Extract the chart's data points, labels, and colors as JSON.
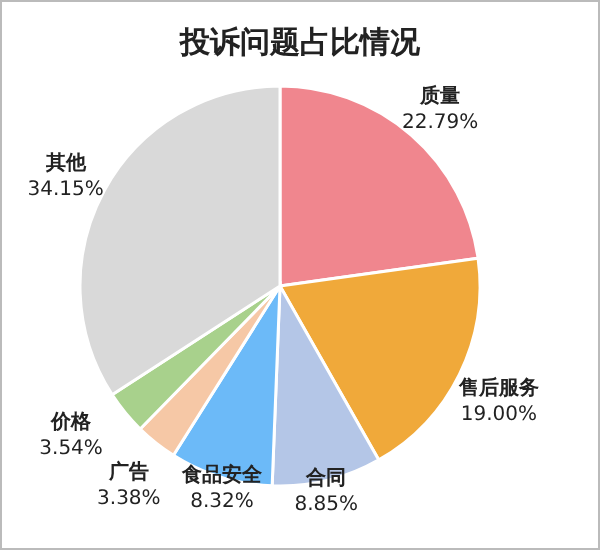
{
  "chart_data": {
    "type": "pie",
    "title": "投诉问题占比情况",
    "categories": [
      "质量",
      "售后服务",
      "合同",
      "食品安全",
      "广告",
      "价格",
      "其他"
    ],
    "values": [
      22.79,
      19.0,
      8.85,
      8.32,
      3.38,
      3.54,
      34.15
    ],
    "colors": [
      "#f0868e",
      "#f0a93a",
      "#b4c6e7",
      "#6cbaf8",
      "#f6c8a6",
      "#a8d18c",
      "#d9d9d9"
    ],
    "value_labels": [
      "22.79%",
      "19.00%",
      "8.85%",
      "8.32%",
      "3.38%",
      "3.54%",
      "34.15%"
    ]
  }
}
